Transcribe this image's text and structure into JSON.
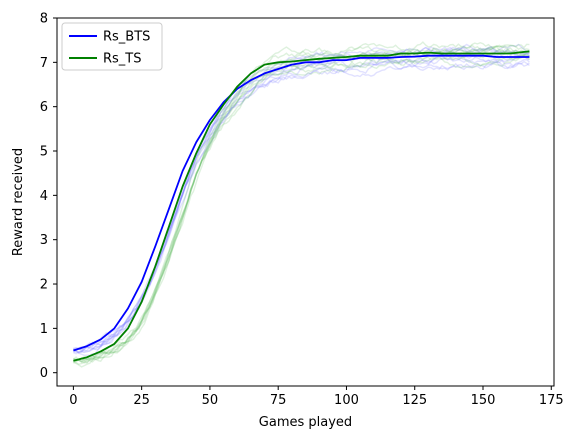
{
  "chart_data": {
    "type": "line",
    "xlabel": "Games played",
    "ylabel": "Reward received",
    "xlim": [
      -6,
      176
    ],
    "ylim": [
      -0.3,
      8
    ],
    "xticks": [
      0,
      25,
      50,
      75,
      100,
      125,
      150,
      175
    ],
    "yticks": [
      0,
      1,
      2,
      3,
      4,
      5,
      6,
      7,
      8
    ],
    "legend_position": "top-left",
    "grid": false,
    "series": [
      {
        "name": "Rs_BTS",
        "color": "#0000ff",
        "x": [
          0,
          5,
          10,
          15,
          20,
          25,
          30,
          35,
          40,
          45,
          50,
          55,
          60,
          65,
          70,
          75,
          80,
          85,
          90,
          95,
          100,
          105,
          110,
          115,
          120,
          125,
          130,
          135,
          140,
          145,
          150,
          155,
          160,
          167
        ],
        "y": [
          0.5,
          0.6,
          0.75,
          1.0,
          1.45,
          2.05,
          2.85,
          3.7,
          4.55,
          5.2,
          5.7,
          6.1,
          6.4,
          6.6,
          6.75,
          6.85,
          6.95,
          7.0,
          7.0,
          7.05,
          7.05,
          7.1,
          7.1,
          7.1,
          7.12,
          7.13,
          7.15,
          7.15,
          7.15,
          7.15,
          7.15,
          7.12,
          7.12,
          7.12
        ]
      },
      {
        "name": "Rs_TS",
        "color": "#008000",
        "x": [
          0,
          5,
          10,
          15,
          20,
          25,
          30,
          35,
          40,
          45,
          50,
          55,
          60,
          65,
          70,
          75,
          80,
          85,
          90,
          95,
          100,
          105,
          110,
          115,
          120,
          125,
          130,
          135,
          140,
          145,
          150,
          155,
          160,
          167
        ],
        "y": [
          0.27,
          0.35,
          0.48,
          0.65,
          1.0,
          1.6,
          2.4,
          3.3,
          4.2,
          4.95,
          5.6,
          6.05,
          6.45,
          6.75,
          6.95,
          7.0,
          7.02,
          7.05,
          7.08,
          7.1,
          7.12,
          7.15,
          7.15,
          7.15,
          7.2,
          7.2,
          7.22,
          7.2,
          7.2,
          7.2,
          7.2,
          7.2,
          7.2,
          7.25
        ]
      }
    ]
  }
}
